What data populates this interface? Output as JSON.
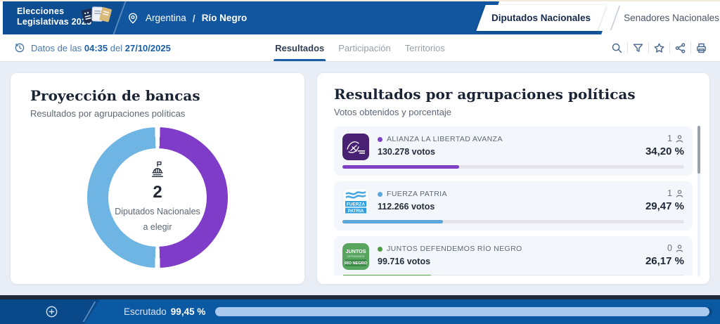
{
  "app": {
    "title_line1": "Elecciones",
    "title_line2": "Legislativas 2025"
  },
  "header": {
    "breadcrumb": {
      "country": "Argentina",
      "separator": "/",
      "region": "Río Negro"
    },
    "category_tabs": [
      {
        "label": "Diputados Nacionales",
        "active": true
      },
      {
        "label": "Senadores Nacionales",
        "active": false
      }
    ]
  },
  "subheader": {
    "update_prefix": "Datos de las",
    "update_time": "04:35",
    "update_connector": "del",
    "update_date": "27/10/2025",
    "tabs": [
      {
        "label": "Resultados",
        "active": true
      },
      {
        "label": "Participación",
        "active": false
      },
      {
        "label": "Territorios",
        "active": false
      }
    ],
    "toolbar_icons": [
      "search",
      "filter",
      "favorite",
      "share",
      "print"
    ]
  },
  "seat_card": {
    "title": "Proyección de bancas",
    "subtitle": "Resultados por agrupaciones políticas",
    "value": "2",
    "label_line1": "Diputados Nacionales",
    "label_line2": "a elegir"
  },
  "results_card": {
    "title": "Resultados por agrupaciones políticas",
    "subtitle": "Votos obtenidos y porcentaje",
    "parties": [
      {
        "name": "ALIANZA LA LIBERTAD AVANZA",
        "votes": "130.278 votos",
        "seats": "1",
        "percent": "34,20 %",
        "percent_value": 34.2,
        "color": "#8040c4"
      },
      {
        "name": "FUERZA PATRIA",
        "votes": "112.266 votos",
        "seats": "1",
        "percent": "29,47 %",
        "percent_value": 29.47,
        "color": "#5ba7dc"
      },
      {
        "name": "JUNTOS DEFENDEMOS RÍO NEGRO",
        "votes": "99.716 votos",
        "seats": "0",
        "percent": "26,17 %",
        "percent_value": 26.17,
        "color": "#4d9d45"
      }
    ]
  },
  "footer": {
    "label": "Escrutado",
    "percent": "99,45 %",
    "percent_value": 99.45
  },
  "colors": {
    "header_blue": "#11569e",
    "accent_blue": "#1b5ea8",
    "donut_purple": "#7e3cc9",
    "donut_blue": "#6fb5e3"
  },
  "chart_data": {
    "type": "pie",
    "title": "Proyección de bancas",
    "labels": [
      "Alianza La Libertad Avanza",
      "Fuerza Patria"
    ],
    "values": [
      1,
      1
    ],
    "colors": [
      "#7e3cc9",
      "#6fb5e3"
    ],
    "center_total": "2",
    "center_label": "Diputados Nacionales a elegir"
  }
}
